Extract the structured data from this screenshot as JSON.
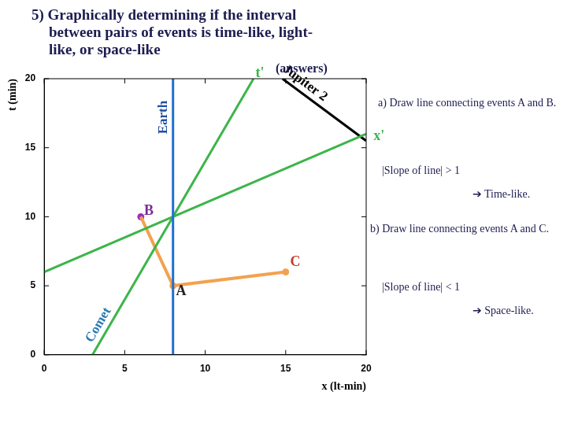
{
  "chart_data": {
    "type": "line",
    "title": "5) Graphically determining if the interval between pairs of events is time-like, light-like, or space-like",
    "subtitle": "(answers)",
    "x_label": "x (lt-min)",
    "y_label": "t (min)",
    "xlim": [
      0,
      20
    ],
    "ylim": [
      0,
      20
    ],
    "xticks": [
      0,
      5,
      10,
      15,
      20
    ],
    "yticks": [
      0,
      5,
      10,
      15,
      20
    ],
    "grid": false,
    "series": [
      {
        "name": "Earth",
        "color": "#1f6fd6",
        "x": [
          8,
          8
        ],
        "values": [
          0,
          20
        ]
      },
      {
        "name": "Comet",
        "color": "#3cb54a",
        "x": [
          3,
          13
        ],
        "values": [
          0,
          20
        ]
      },
      {
        "color": "#3cb54a",
        "x": [
          0,
          20
        ],
        "values": [
          6,
          16
        ]
      },
      {
        "name": "Jupiter 2",
        "color": "#000000",
        "x": [
          14.8,
          20
        ],
        "values": [
          20,
          15.5
        ]
      },
      {
        "color": "#f2a24e",
        "x": [
          6,
          8,
          15
        ],
        "values": [
          10,
          5,
          6
        ]
      },
      {
        "type": "scatter",
        "marker": "circle",
        "colors": [
          "#f2a24e",
          "#9b30b8",
          "#f2a24e"
        ],
        "x": [
          8,
          6,
          15
        ],
        "values": [
          5,
          10,
          6
        ]
      }
    ],
    "annotations": [
      {
        "text": "t'",
        "x": 13.4,
        "y": 20.4
      },
      {
        "text": "x'",
        "x": 20.8,
        "y": 15.8
      },
      {
        "text": "A",
        "x": 8.5,
        "y": 4.6
      },
      {
        "text": "B",
        "x": 6.5,
        "y": 10.4
      },
      {
        "text": "C",
        "x": 15.6,
        "y": 6.7
      }
    ],
    "notes": [
      "a) Draw line connecting events A and B.",
      "|Slope of line| > 1",
      "➔ Time-like.",
      "b) Draw line connecting events A and C.",
      "|Slope of line| < 1",
      "➔ Space-like."
    ]
  }
}
